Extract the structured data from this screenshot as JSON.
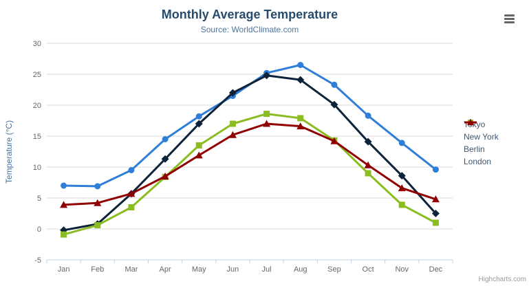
{
  "header": {
    "title": "Monthly Average Temperature",
    "subtitle": "Source: WorldClimate.com"
  },
  "icons": {
    "context_menu": "hamburger-menu"
  },
  "chart_data": {
    "type": "line",
    "title": "Monthly Average Temperature",
    "subtitle": "Source: WorldClimate.com",
    "categories": [
      "Jan",
      "Feb",
      "Mar",
      "Apr",
      "May",
      "Jun",
      "Jul",
      "Aug",
      "Sep",
      "Oct",
      "Nov",
      "Dec"
    ],
    "series": [
      {
        "name": "Tokyo",
        "color": "#2f7ed8",
        "marker": "circle",
        "values": [
          7.0,
          6.9,
          9.5,
          14.5,
          18.2,
          21.5,
          25.2,
          26.5,
          23.3,
          18.3,
          13.9,
          9.6
        ]
      },
      {
        "name": "New York",
        "color": "#0d233a",
        "marker": "diamond",
        "values": [
          -0.2,
          0.8,
          5.7,
          11.3,
          17.0,
          22.0,
          24.8,
          24.1,
          20.1,
          14.1,
          8.6,
          2.5
        ]
      },
      {
        "name": "Berlin",
        "color": "#8bbc21",
        "marker": "square",
        "values": [
          -0.9,
          0.6,
          3.5,
          8.4,
          13.5,
          17.0,
          18.6,
          17.9,
          14.3,
          9.0,
          3.9,
          1.0
        ]
      },
      {
        "name": "London",
        "color": "#910000",
        "marker": "triangle",
        "values": [
          3.9,
          4.2,
          5.7,
          8.5,
          11.9,
          15.2,
          17.0,
          16.6,
          14.2,
          10.3,
          6.6,
          4.8
        ]
      }
    ],
    "xlabel": "",
    "ylabel": "Temperature (°C)",
    "ylim": [
      -5,
      30
    ],
    "ytick_step": 5,
    "yticks": [
      -5,
      0,
      5,
      10,
      15,
      20,
      25,
      30
    ],
    "grid": true,
    "legend_position": "right",
    "axis_line_color": "#c0d0e0",
    "grid_color": "#d8d8d8",
    "tick_label_color": "#666666"
  },
  "credits": {
    "label": "Highcharts.com"
  }
}
